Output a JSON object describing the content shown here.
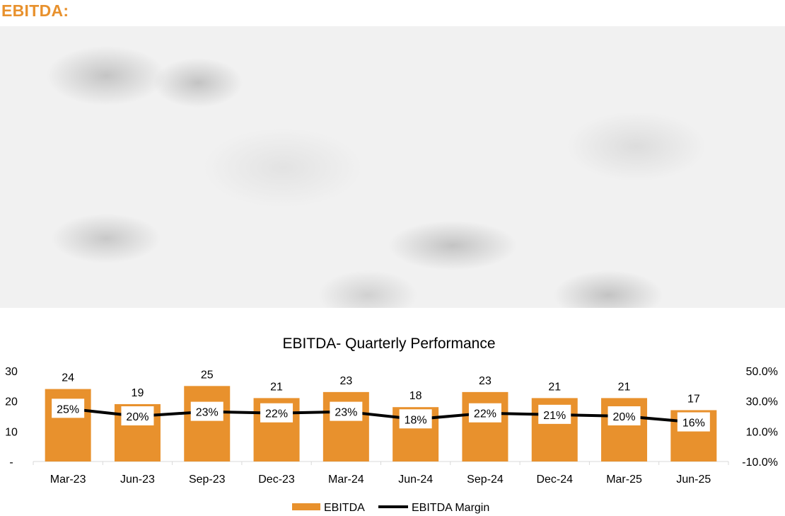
{
  "header": {
    "title": "EBITDA:"
  },
  "colors": {
    "bar": "#E8912D",
    "line": "#000000",
    "header": "#E8912D"
  },
  "chart_data": {
    "type": "bar",
    "title": "EBITDA- Quarterly Performance",
    "categories": [
      "Mar-23",
      "Jun-23",
      "Sep-23",
      "Dec-23",
      "Mar-24",
      "Jun-24",
      "Sep-24",
      "Dec-24",
      "Mar-25",
      "Jun-25"
    ],
    "series": [
      {
        "name": "EBITDA",
        "type": "bar",
        "axis": "left",
        "values": [
          24,
          19,
          25,
          21,
          23,
          18,
          23,
          21,
          21,
          17
        ],
        "labels": [
          "24",
          "19",
          "25",
          "21",
          "23",
          "18",
          "23",
          "21",
          "21",
          "17"
        ]
      },
      {
        "name": "EBITDA Margin",
        "type": "line",
        "axis": "right",
        "values": [
          25,
          20,
          23,
          22,
          23,
          18,
          22,
          21,
          20,
          16
        ],
        "labels": [
          "25%",
          "20%",
          "23%",
          "22%",
          "23%",
          "18%",
          "22%",
          "21%",
          "20%",
          "16%"
        ]
      }
    ],
    "y_left": {
      "min": 0,
      "max": 30,
      "ticks": [
        0,
        10,
        20,
        30
      ],
      "tick_labels": [
        "-",
        "10",
        "20",
        "30"
      ]
    },
    "y_right": {
      "min": -10,
      "max": 50,
      "ticks": [
        -10,
        10,
        30,
        50
      ],
      "tick_labels": [
        "-10.0%",
        "10.0%",
        "30.0%",
        "50.0%"
      ]
    },
    "legend": {
      "position": "bottom",
      "items": [
        "EBITDA",
        "EBITDA Margin"
      ]
    },
    "grid": false
  }
}
